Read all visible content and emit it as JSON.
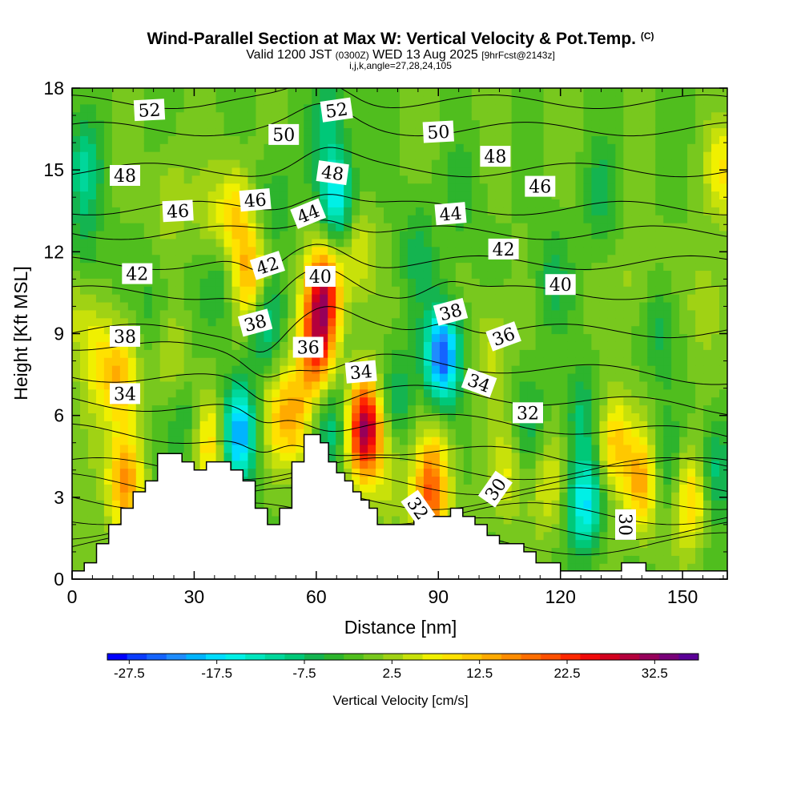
{
  "title": {
    "main": "Wind-Parallel Section at Max W: Vertical Velocity & Pot.Temp.",
    "copyright": "(C)",
    "valid_prefix": "Valid 1200 JST",
    "valid_z": "(0300Z)",
    "valid_date": "WED 13 Aug 2025",
    "fcst": "[9hrFcst@2143z]",
    "indices": "i,j,k,angle=27,28,24,105"
  },
  "chart_data": {
    "type": "heatmap",
    "xlabel": "Distance [nm]",
    "ylabel": "Height [Kft MSL]",
    "xlim": [
      0,
      161
    ],
    "ylim": [
      0,
      18
    ],
    "xticks": [
      0,
      30,
      60,
      90,
      120,
      150
    ],
    "yticks": [
      0,
      3,
      6,
      9,
      12,
      15,
      18
    ],
    "colorbar": {
      "label": "Vertical Velocity [cm/s]",
      "tick_labels": [
        "-27.5",
        "-17.5",
        "-7.5",
        "2.5",
        "12.5",
        "22.5",
        "32.5"
      ],
      "tick_values": [
        -27.5,
        -17.5,
        -7.5,
        2.5,
        12.5,
        22.5,
        32.5
      ],
      "min": -30,
      "max": 37.5,
      "step": 2.5,
      "colors": [
        "#0000ff",
        "#0a3cff",
        "#1464ff",
        "#1e8cff",
        "#00b4ff",
        "#00dcff",
        "#00f0e6",
        "#00e6be",
        "#00d79b",
        "#00c878",
        "#14b450",
        "#2db42d",
        "#50be1e",
        "#78c81e",
        "#a0d214",
        "#c8e10a",
        "#f0f000",
        "#ffe100",
        "#ffc800",
        "#ffaa00",
        "#ff8c00",
        "#ff6e00",
        "#ff5000",
        "#ff2800",
        "#f00a0a",
        "#d2001e",
        "#b4003c",
        "#96005a",
        "#780078",
        "#5a0096"
      ]
    },
    "terrain": [
      [
        0,
        0.3
      ],
      [
        3,
        0.3
      ],
      [
        3,
        0.6
      ],
      [
        6,
        0.6
      ],
      [
        6,
        1.3
      ],
      [
        9,
        1.3
      ],
      [
        9,
        2
      ],
      [
        12,
        2
      ],
      [
        12,
        2.6
      ],
      [
        15,
        2.6
      ],
      [
        15,
        3.2
      ],
      [
        18,
        3.2
      ],
      [
        18,
        3.6
      ],
      [
        21,
        3.6
      ],
      [
        21,
        4.6
      ],
      [
        27,
        4.6
      ],
      [
        27,
        4.3
      ],
      [
        30,
        4.3
      ],
      [
        30,
        4
      ],
      [
        33,
        4
      ],
      [
        33,
        4.3
      ],
      [
        39,
        4.3
      ],
      [
        39,
        4
      ],
      [
        42,
        4
      ],
      [
        42,
        3.6
      ],
      [
        45,
        3.6
      ],
      [
        45,
        2.6
      ],
      [
        48,
        2.6
      ],
      [
        48,
        2
      ],
      [
        51,
        2
      ],
      [
        51,
        2.6
      ],
      [
        54,
        2.6
      ],
      [
        54,
        4.3
      ],
      [
        57,
        4.3
      ],
      [
        57,
        5.3
      ],
      [
        61,
        5.3
      ],
      [
        61,
        5
      ],
      [
        63,
        5
      ],
      [
        63,
        4.3
      ],
      [
        65,
        4.3
      ],
      [
        65,
        3.9
      ],
      [
        67,
        3.9
      ],
      [
        67,
        3.6
      ],
      [
        69,
        3.6
      ],
      [
        69,
        3.2
      ],
      [
        71,
        3.2
      ],
      [
        71,
        2.9
      ],
      [
        73,
        2.9
      ],
      [
        73,
        2.6
      ],
      [
        75,
        2.6
      ],
      [
        75,
        2
      ],
      [
        84,
        2
      ],
      [
        84,
        2.6
      ],
      [
        88,
        2.6
      ],
      [
        88,
        2.3
      ],
      [
        93,
        2.3
      ],
      [
        93,
        2.6
      ],
      [
        96,
        2.6
      ],
      [
        96,
        2.3
      ],
      [
        99,
        2.3
      ],
      [
        99,
        2
      ],
      [
        102,
        2
      ],
      [
        102,
        1.6
      ],
      [
        105,
        1.6
      ],
      [
        105,
        1.3
      ],
      [
        111,
        1.3
      ],
      [
        111,
        1
      ],
      [
        114,
        1
      ],
      [
        114,
        0.6
      ],
      [
        120,
        0.6
      ],
      [
        120,
        0.3
      ],
      [
        135,
        0.3
      ],
      [
        135,
        0.6
      ],
      [
        141,
        0.6
      ],
      [
        141,
        0.3
      ],
      [
        161,
        0.3
      ],
      [
        161,
        0
      ]
    ],
    "cells": [
      {
        "x": 0,
        "z": 10,
        "w": 5
      },
      {
        "x": 3,
        "z": 15,
        "w": -10
      },
      {
        "x": 3,
        "z": 12,
        "w": -5
      },
      {
        "x": 6,
        "z": 8,
        "w": 9
      },
      {
        "x": 5,
        "z": 5,
        "w": 4
      },
      {
        "x": 12,
        "z": 7.5,
        "w": 14
      },
      {
        "x": 13,
        "z": 3.5,
        "w": 18
      },
      {
        "x": 20,
        "z": 10,
        "w": -4
      },
      {
        "x": 24,
        "z": 14,
        "w": 5
      },
      {
        "x": 25,
        "z": 8,
        "w": 6
      },
      {
        "x": 28,
        "z": 6,
        "w": -6
      },
      {
        "x": 34,
        "z": 5,
        "w": 12
      },
      {
        "x": 34,
        "z": 13,
        "w": 5
      },
      {
        "x": 36,
        "z": 11,
        "w": -6
      },
      {
        "x": 41,
        "z": 5.3,
        "w": -22
      },
      {
        "x": 44,
        "z": 11,
        "w": 17
      },
      {
        "x": 40,
        "z": 13.5,
        "w": 12
      },
      {
        "x": 47,
        "z": 9.5,
        "w": -12
      },
      {
        "x": 50,
        "z": 14,
        "w": -5
      },
      {
        "x": 50,
        "z": 6,
        "w": 8
      },
      {
        "x": 55,
        "z": 6,
        "w": 14
      },
      {
        "x": 62,
        "z": 10.5,
        "w": 28
      },
      {
        "x": 60,
        "z": 8.5,
        "w": 24
      },
      {
        "x": 65,
        "z": 14,
        "w": -18
      },
      {
        "x": 63,
        "z": 17,
        "w": -8
      },
      {
        "x": 64,
        "z": 5.5,
        "w": -10
      },
      {
        "x": 72,
        "z": 5.5,
        "w": 36
      },
      {
        "x": 70,
        "z": 12,
        "w": 8
      },
      {
        "x": 78,
        "z": 4,
        "w": 6
      },
      {
        "x": 80,
        "z": 6.5,
        "w": -8
      },
      {
        "x": 85,
        "z": 12,
        "w": -6
      },
      {
        "x": 88,
        "z": 3,
        "w": 22
      },
      {
        "x": 91,
        "z": 8.2,
        "w": -28
      },
      {
        "x": 90,
        "z": 5,
        "w": 6
      },
      {
        "x": 96,
        "z": 14,
        "w": -4
      },
      {
        "x": 103,
        "z": 8.5,
        "w": 6
      },
      {
        "x": 107,
        "z": 4,
        "w": 8
      },
      {
        "x": 112,
        "z": 5.5,
        "w": -6
      },
      {
        "x": 117,
        "z": 3.5,
        "w": 8
      },
      {
        "x": 118,
        "z": 11,
        "w": -6
      },
      {
        "x": 126,
        "z": 2.8,
        "w": -18
      },
      {
        "x": 125,
        "z": 6,
        "w": -8
      },
      {
        "x": 130,
        "z": 14,
        "w": -6
      },
      {
        "x": 133,
        "z": 5,
        "w": 14
      },
      {
        "x": 140,
        "z": 3.5,
        "w": 16
      },
      {
        "x": 138,
        "z": 11,
        "w": 4
      },
      {
        "x": 145,
        "z": 9,
        "w": -6
      },
      {
        "x": 146,
        "z": 4,
        "w": -6
      },
      {
        "x": 152,
        "z": 3,
        "w": 14
      },
      {
        "x": 156,
        "z": 10,
        "w": 6
      },
      {
        "x": 160,
        "z": 15,
        "w": 10
      },
      {
        "x": 158,
        "z": 4,
        "w": -10
      }
    ],
    "theta_contours": [
      {
        "value": 52,
        "base": 17.5
      },
      {
        "value": 50,
        "base": 16.5
      },
      {
        "value": 48,
        "base": 15.0
      },
      {
        "value": 46,
        "base": 13.6
      },
      {
        "value": 44,
        "base": 12.7
      },
      {
        "value": 42,
        "base": 11.6
      },
      {
        "value": 40,
        "base": 10.5
      },
      {
        "value": 38,
        "base": 9.1
      },
      {
        "value": 36,
        "base": 8.0
      },
      {
        "value": 34,
        "base": 6.9
      },
      {
        "value": 32,
        "base": 5.9
      },
      {
        "value": 30,
        "base": 4.8
      }
    ],
    "contour_labels": [
      {
        "text": "52",
        "x": 19,
        "z": 17.2,
        "rot": -3
      },
      {
        "text": "52",
        "x": 65,
        "z": 17.2,
        "rot": -8
      },
      {
        "text": "50",
        "x": 52,
        "z": 16.3,
        "rot": 0
      },
      {
        "text": "50",
        "x": 90,
        "z": 16.4,
        "rot": -3
      },
      {
        "text": "48",
        "x": 13,
        "z": 14.8,
        "rot": 0
      },
      {
        "text": "48",
        "x": 64,
        "z": 14.9,
        "rot": 8
      },
      {
        "text": "48",
        "x": 104,
        "z": 15.5,
        "rot": 0
      },
      {
        "text": "46",
        "x": 26,
        "z": 13.5,
        "rot": -3
      },
      {
        "text": "46",
        "x": 45,
        "z": 13.9,
        "rot": -5
      },
      {
        "text": "46",
        "x": 115,
        "z": 14.4,
        "rot": 0
      },
      {
        "text": "44",
        "x": 58,
        "z": 13.4,
        "rot": -22
      },
      {
        "text": "44",
        "x": 93,
        "z": 13.4,
        "rot": -5
      },
      {
        "text": "42",
        "x": 16,
        "z": 11.2,
        "rot": 0
      },
      {
        "text": "42",
        "x": 48,
        "z": 11.5,
        "rot": -18
      },
      {
        "text": "42",
        "x": 106,
        "z": 12.1,
        "rot": 0
      },
      {
        "text": "40",
        "x": 61,
        "z": 11.1,
        "rot": 0
      },
      {
        "text": "40",
        "x": 120,
        "z": 10.8,
        "rot": 0
      },
      {
        "text": "38",
        "x": 13,
        "z": 8.9,
        "rot": 0
      },
      {
        "text": "38",
        "x": 45,
        "z": 9.4,
        "rot": -15
      },
      {
        "text": "38",
        "x": 93,
        "z": 9.8,
        "rot": -15
      },
      {
        "text": "36",
        "x": 58,
        "z": 8.5,
        "rot": 0
      },
      {
        "text": "36",
        "x": 106,
        "z": 8.9,
        "rot": -20
      },
      {
        "text": "34",
        "x": 13,
        "z": 6.8,
        "rot": 0
      },
      {
        "text": "34",
        "x": 71,
        "z": 7.6,
        "rot": -5
      },
      {
        "text": "34",
        "x": 100,
        "z": 7.2,
        "rot": 20
      },
      {
        "text": "32",
        "x": 112,
        "z": 6.1,
        "rot": 0
      },
      {
        "text": "32",
        "x": 85,
        "z": 2.6,
        "rot": 55
      },
      {
        "text": "30",
        "x": 104,
        "z": 3.3,
        "rot": -55
      },
      {
        "text": "30",
        "x": 136,
        "z": 2,
        "rot": 90
      }
    ]
  }
}
